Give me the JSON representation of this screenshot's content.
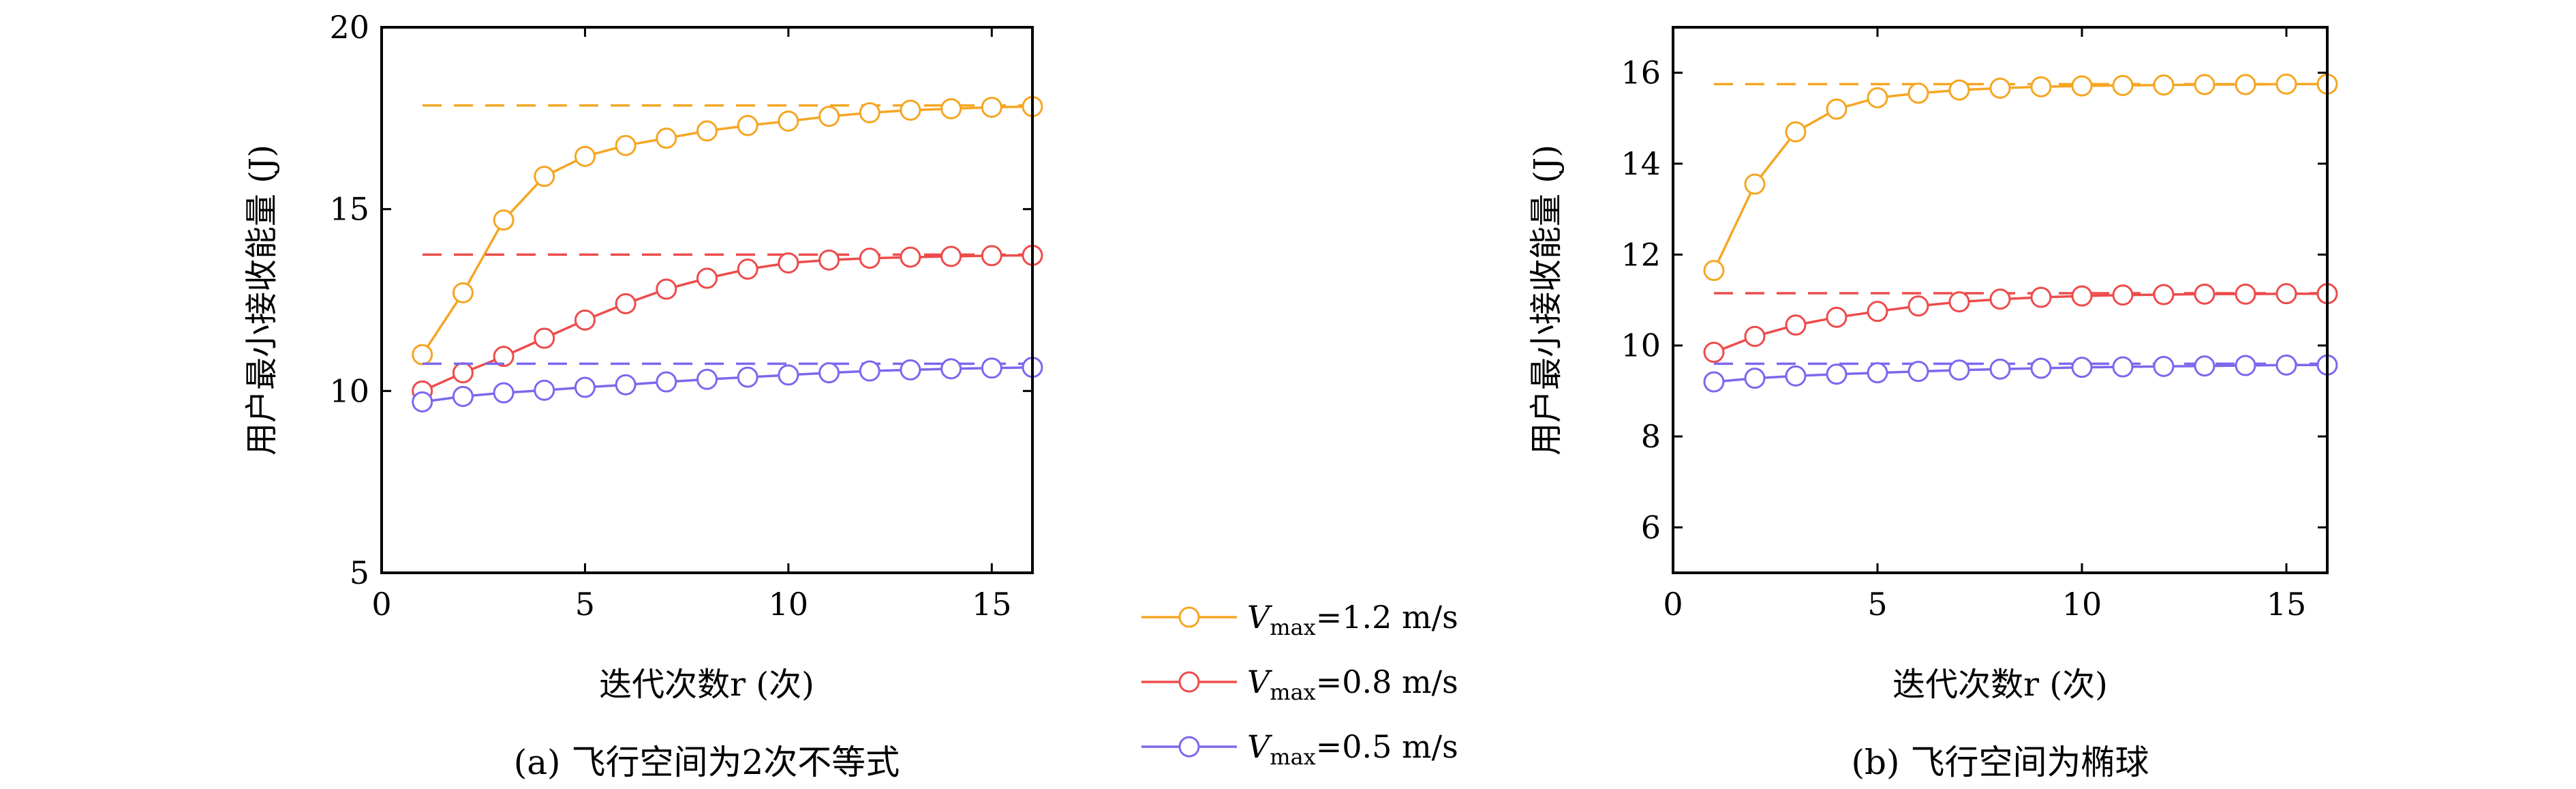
{
  "colors": {
    "orange": "#F5A623",
    "red": "#EE4B4B",
    "purple": "#7B68EE"
  },
  "legend": {
    "items": [
      {
        "v": "V",
        "sub": "max",
        "rest": "=1.2 m/s",
        "color_key": "orange"
      },
      {
        "v": "V",
        "sub": "max",
        "rest": "=0.8 m/s",
        "color_key": "red"
      },
      {
        "v": "V",
        "sub": "max",
        "rest": "=0.5 m/s",
        "color_key": "purple"
      }
    ]
  },
  "chart_data": [
    {
      "type": "line",
      "caption": "(a) 飞行空间为2次不等式",
      "xlabel": "迭代次数r (次)",
      "ylabel": "用户最小接收能量 (J)",
      "xlim": [
        0,
        16
      ],
      "ylim": [
        5,
        20
      ],
      "xticks": [
        "0",
        "5",
        "10",
        "15"
      ],
      "yticks": [
        "5",
        "10",
        "15",
        "20"
      ],
      "x": [
        1,
        2,
        3,
        4,
        5,
        6,
        7,
        8,
        9,
        10,
        11,
        12,
        13,
        14,
        15,
        16
      ],
      "series": [
        {
          "name": "Vmax=1.2 m/s",
          "color_key": "orange",
          "reference": 17.85,
          "values": [
            11.0,
            12.7,
            14.7,
            15.9,
            16.45,
            16.75,
            16.95,
            17.15,
            17.3,
            17.42,
            17.55,
            17.65,
            17.72,
            17.76,
            17.8,
            17.82
          ]
        },
        {
          "name": "Vmax=0.8 m/s",
          "color_key": "red",
          "reference": 13.75,
          "values": [
            10.0,
            10.5,
            10.95,
            11.45,
            11.95,
            12.4,
            12.8,
            13.1,
            13.35,
            13.52,
            13.6,
            13.65,
            13.68,
            13.7,
            13.72,
            13.73
          ]
        },
        {
          "name": "Vmax=0.5 m/s",
          "color_key": "purple",
          "reference": 10.75,
          "values": [
            9.7,
            9.85,
            9.95,
            10.02,
            10.1,
            10.17,
            10.25,
            10.32,
            10.38,
            10.44,
            10.5,
            10.55,
            10.58,
            10.61,
            10.63,
            10.65
          ]
        }
      ]
    },
    {
      "type": "line",
      "caption": "(b) 飞行空间为椭球",
      "xlabel": "迭代次数r (次)",
      "ylabel": "用户最小接收能量 (J)",
      "xlim": [
        0,
        16
      ],
      "ylim": [
        5,
        17
      ],
      "xticks": [
        "0",
        "5",
        "10",
        "15"
      ],
      "yticks": [
        "6",
        "8",
        "10",
        "12",
        "14",
        "16"
      ],
      "x": [
        1,
        2,
        3,
        4,
        5,
        6,
        7,
        8,
        9,
        10,
        11,
        12,
        13,
        14,
        15,
        16
      ],
      "series": [
        {
          "name": "Vmax=1.2 m/s",
          "color_key": "orange",
          "reference": 15.75,
          "values": [
            11.65,
            13.55,
            14.7,
            15.2,
            15.45,
            15.55,
            15.62,
            15.66,
            15.69,
            15.71,
            15.72,
            15.73,
            15.74,
            15.74,
            15.75,
            15.75
          ]
        },
        {
          "name": "Vmax=0.8 m/s",
          "color_key": "red",
          "reference": 11.15,
          "values": [
            9.85,
            10.2,
            10.45,
            10.62,
            10.75,
            10.87,
            10.96,
            11.02,
            11.06,
            11.09,
            11.11,
            11.12,
            11.13,
            11.13,
            11.14,
            11.14
          ]
        },
        {
          "name": "Vmax=0.5 m/s",
          "color_key": "purple",
          "reference": 9.6,
          "values": [
            9.2,
            9.28,
            9.33,
            9.37,
            9.4,
            9.43,
            9.46,
            9.48,
            9.5,
            9.52,
            9.53,
            9.54,
            9.55,
            9.56,
            9.57,
            9.57
          ]
        }
      ]
    }
  ]
}
